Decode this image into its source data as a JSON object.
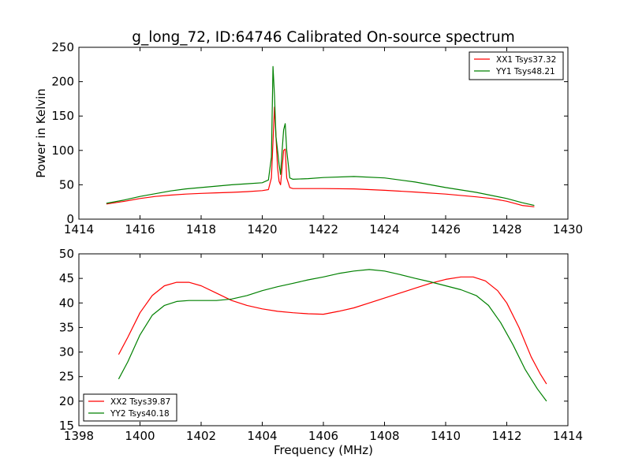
{
  "title": "g_long_72, ID:64746 Calibrated On-source spectrum",
  "chart_data": [
    {
      "type": "line",
      "xlabel": "",
      "ylabel": "Power in Kelvin",
      "xlim": [
        1414,
        1430
      ],
      "ylim": [
        0,
        250
      ],
      "xticks": [
        "1414",
        "1416",
        "1418",
        "1420",
        "1422",
        "1424",
        "1426",
        "1428",
        "1430"
      ],
      "yticks": [
        "0",
        "50",
        "100",
        "150",
        "200",
        "250"
      ],
      "legend_position": "top-right",
      "series": [
        {
          "name": "XX1 Tsys37.32",
          "color": "#ff0000",
          "points": [
            [
              1414.9,
              22
            ],
            [
              1415.5,
              26
            ],
            [
              1416,
              30
            ],
            [
              1416.5,
              33
            ],
            [
              1417,
              35
            ],
            [
              1417.5,
              36.5
            ],
            [
              1418,
              37.5
            ],
            [
              1418.5,
              38.3
            ],
            [
              1419,
              39
            ],
            [
              1419.5,
              40
            ],
            [
              1420,
              41.5
            ],
            [
              1420.2,
              43
            ],
            [
              1420.3,
              60
            ],
            [
              1420.4,
              163
            ],
            [
              1420.45,
              120
            ],
            [
              1420.5,
              75
            ],
            [
              1420.55,
              55
            ],
            [
              1420.6,
              50
            ],
            [
              1420.65,
              75
            ],
            [
              1420.7,
              100
            ],
            [
              1420.75,
              102
            ],
            [
              1420.8,
              60
            ],
            [
              1420.9,
              46
            ],
            [
              1421,
              44.5
            ],
            [
              1422,
              44.5
            ],
            [
              1423,
              44
            ],
            [
              1424,
              42
            ],
            [
              1425,
              39.5
            ],
            [
              1426,
              36.5
            ],
            [
              1427,
              32.5
            ],
            [
              1427.5,
              30
            ],
            [
              1428,
              26
            ],
            [
              1428.5,
              20
            ],
            [
              1428.9,
              18
            ]
          ]
        },
        {
          "name": "YY1 Tsys48.21",
          "color": "#008000",
          "points": [
            [
              1414.9,
              23
            ],
            [
              1415.5,
              28
            ],
            [
              1416,
              33
            ],
            [
              1416.5,
              37
            ],
            [
              1417,
              41
            ],
            [
              1417.5,
              44
            ],
            [
              1418,
              46
            ],
            [
              1418.5,
              48
            ],
            [
              1419,
              50
            ],
            [
              1419.5,
              51.5
            ],
            [
              1420,
              53
            ],
            [
              1420.2,
              57
            ],
            [
              1420.3,
              90
            ],
            [
              1420.35,
              222
            ],
            [
              1420.4,
              180
            ],
            [
              1420.45,
              120
            ],
            [
              1420.5,
              100
            ],
            [
              1420.55,
              80
            ],
            [
              1420.6,
              65
            ],
            [
              1420.65,
              100
            ],
            [
              1420.7,
              130
            ],
            [
              1420.75,
              139
            ],
            [
              1420.8,
              100
            ],
            [
              1420.9,
              60
            ],
            [
              1421,
              58
            ],
            [
              1421.5,
              59
            ],
            [
              1422,
              60.5
            ],
            [
              1423,
              62
            ],
            [
              1424,
              60
            ],
            [
              1425,
              54
            ],
            [
              1426,
              46
            ],
            [
              1427,
              39
            ],
            [
              1428,
              30
            ],
            [
              1428.5,
              24
            ],
            [
              1428.9,
              20
            ]
          ]
        }
      ]
    },
    {
      "type": "line",
      "xlabel": "Frequency (MHz)",
      "ylabel": "",
      "xlim": [
        1398,
        1414
      ],
      "ylim": [
        15,
        50
      ],
      "xticks": [
        "1398",
        "1400",
        "1402",
        "1404",
        "1406",
        "1408",
        "1410",
        "1412",
        "1414"
      ],
      "yticks": [
        "15",
        "20",
        "25",
        "30",
        "35",
        "40",
        "45",
        "50"
      ],
      "legend_position": "bottom-left",
      "series": [
        {
          "name": "XX2 Tsys39.87",
          "color": "#ff0000",
          "points": [
            [
              1399.3,
              29.5
            ],
            [
              1399.6,
              33
            ],
            [
              1400,
              38
            ],
            [
              1400.4,
              41.5
            ],
            [
              1400.8,
              43.5
            ],
            [
              1401.2,
              44.2
            ],
            [
              1401.6,
              44.2
            ],
            [
              1402,
              43.5
            ],
            [
              1402.5,
              42
            ],
            [
              1403,
              40.5
            ],
            [
              1403.5,
              39.5
            ],
            [
              1404,
              38.8
            ],
            [
              1404.5,
              38.3
            ],
            [
              1405,
              38
            ],
            [
              1405.5,
              37.8
            ],
            [
              1406,
              37.7
            ],
            [
              1406.5,
              38.3
            ],
            [
              1407,
              39
            ],
            [
              1407.5,
              40
            ],
            [
              1408,
              41
            ],
            [
              1408.5,
              42
            ],
            [
              1409,
              43
            ],
            [
              1409.5,
              44
            ],
            [
              1410,
              44.8
            ],
            [
              1410.5,
              45.3
            ],
            [
              1410.9,
              45.3
            ],
            [
              1411.3,
              44.5
            ],
            [
              1411.7,
              42.5
            ],
            [
              1412,
              40
            ],
            [
              1412.4,
              35
            ],
            [
              1412.8,
              29
            ],
            [
              1413.1,
              25.5
            ],
            [
              1413.3,
              23.5
            ]
          ]
        },
        {
          "name": "YY2 Tsys40.18",
          "color": "#008000",
          "points": [
            [
              1399.3,
              24.5
            ],
            [
              1399.6,
              28
            ],
            [
              1400,
              33.5
            ],
            [
              1400.4,
              37.5
            ],
            [
              1400.8,
              39.5
            ],
            [
              1401.2,
              40.3
            ],
            [
              1401.6,
              40.5
            ],
            [
              1402,
              40.5
            ],
            [
              1402.5,
              40.5
            ],
            [
              1403,
              40.8
            ],
            [
              1403.5,
              41.5
            ],
            [
              1404,
              42.5
            ],
            [
              1404.5,
              43.3
            ],
            [
              1405,
              44
            ],
            [
              1405.5,
              44.7
            ],
            [
              1406,
              45.3
            ],
            [
              1406.5,
              46
            ],
            [
              1407,
              46.5
            ],
            [
              1407.5,
              46.8
            ],
            [
              1408,
              46.5
            ],
            [
              1408.5,
              45.8
            ],
            [
              1409,
              45
            ],
            [
              1409.5,
              44.3
            ],
            [
              1410,
              43.5
            ],
            [
              1410.5,
              42.7
            ],
            [
              1411,
              41.5
            ],
            [
              1411.4,
              39.5
            ],
            [
              1411.8,
              36
            ],
            [
              1412.2,
              31.5
            ],
            [
              1412.6,
              26.5
            ],
            [
              1413,
              22.5
            ],
            [
              1413.3,
              20
            ]
          ]
        }
      ]
    }
  ]
}
